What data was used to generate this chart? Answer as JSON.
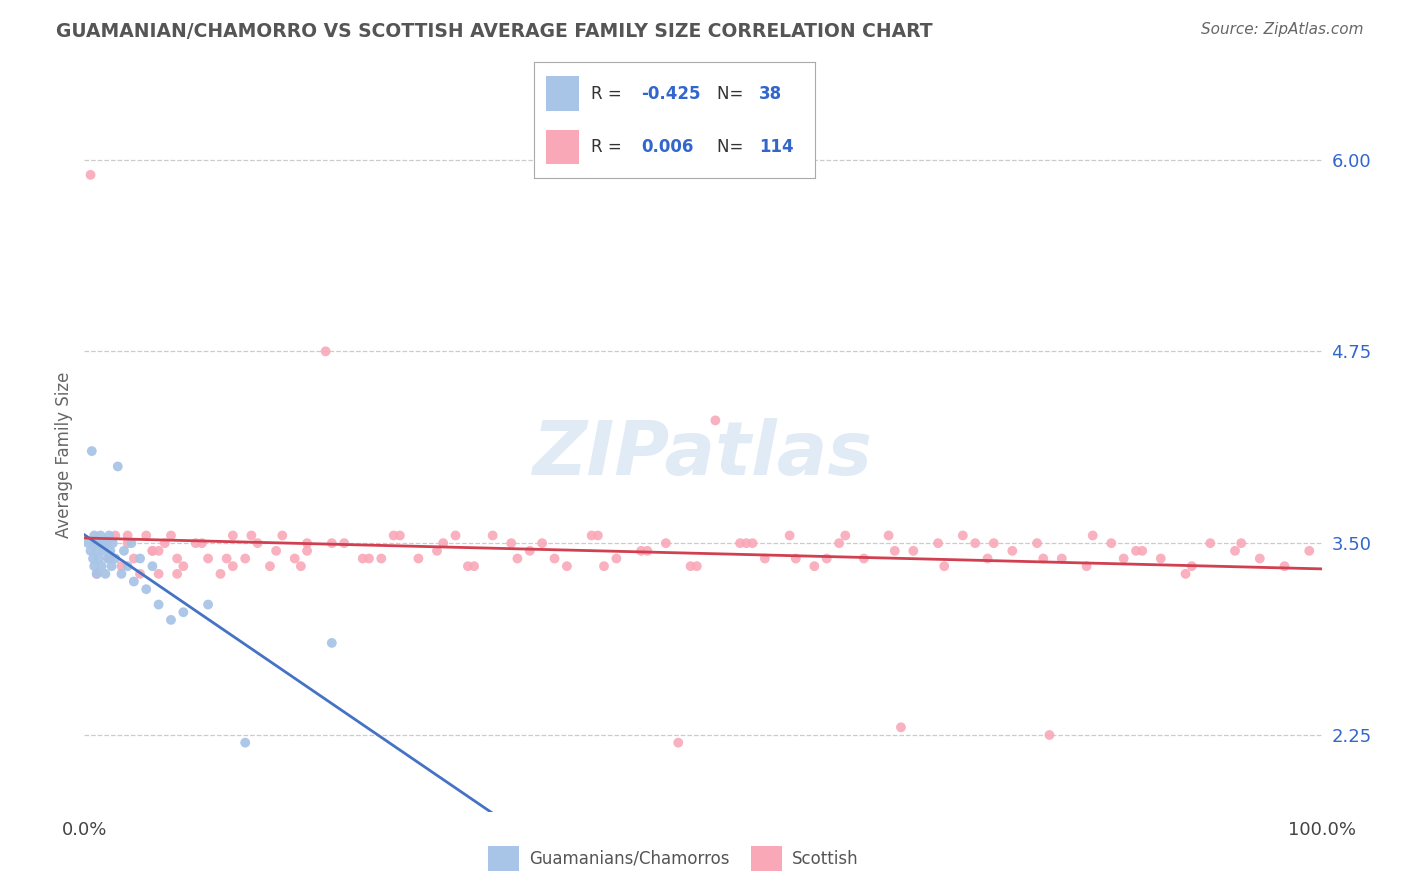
{
  "title": "GUAMANIAN/CHAMORRO VS SCOTTISH AVERAGE FAMILY SIZE CORRELATION CHART",
  "source": "Source: ZipAtlas.com",
  "ylabel": "Average Family Size",
  "yticks": [
    2.25,
    3.5,
    4.75,
    6.0
  ],
  "xlim": [
    0,
    1
  ],
  "ylim": [
    1.75,
    6.4
  ],
  "color_guam": "#a8c4e6",
  "color_scottish": "#f9a8b8",
  "color_trend_guam": "#4472c4",
  "color_trend_scottish": "#d04050",
  "color_trend_dashed": "#b0b0b0",
  "watermark": "ZIPatlas"
}
